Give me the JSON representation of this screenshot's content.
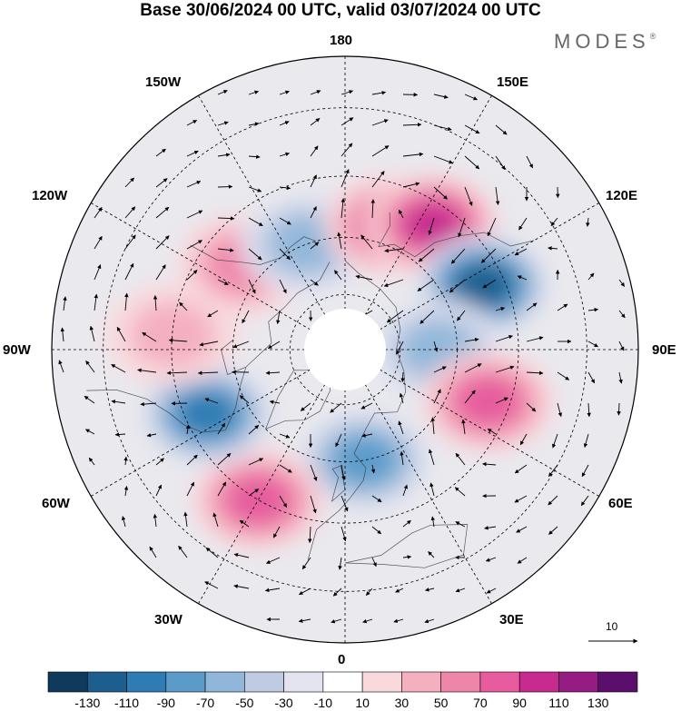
{
  "title": "Base 30/06/2024 00 UTC, valid 03/07/2024 00 UTC",
  "brand": "MODES",
  "brand_mark": "®",
  "longitude_labels": {
    "lon_180": "180",
    "lon_150e": "150E",
    "lon_120e": "120E",
    "lon_90e": "90E",
    "lon_60e": "60E",
    "lon_30e": "30E",
    "lon_0": "0",
    "lon_30w": "30W",
    "lon_60w": "60W",
    "lon_90w": "90W",
    "lon_120w": "120W",
    "lon_150w": "150W"
  },
  "reference_vector": {
    "label": "10"
  },
  "colorbar": {
    "ticks": [
      "-130",
      "-110",
      "-90",
      "-70",
      "-50",
      "-30",
      "-10",
      "10",
      "30",
      "50",
      "70",
      "90",
      "110",
      "130"
    ],
    "colors": [
      "#0f3a5c",
      "#1c5e8e",
      "#2f7bb4",
      "#5a9bca",
      "#90b7da",
      "#bfcbe3",
      "#e3e4f0",
      "#ffffff",
      "#f9d9de",
      "#f4b0c0",
      "#ee86aa",
      "#e65c9e",
      "#c82b90",
      "#951c83",
      "#5b0e6c"
    ]
  },
  "map_data": {
    "projection": "polar-stereographic-north",
    "center_longitude_top": 180,
    "anomalies": [
      {
        "label": "pos",
        "lon": -130,
        "lat": 55,
        "value": 60
      },
      {
        "label": "neg",
        "lon": -160,
        "lat": 60,
        "value": -60
      },
      {
        "label": "pos",
        "lon": 160,
        "lat": 55,
        "value": 80
      },
      {
        "label": "pos",
        "lon": 145,
        "lat": 50,
        "value": 90
      },
      {
        "label": "neg",
        "lon": 115,
        "lat": 50,
        "value": -120
      },
      {
        "label": "neg",
        "lon": 90,
        "lat": 65,
        "value": -50
      },
      {
        "label": "pos",
        "lon": 70,
        "lat": 50,
        "value": 70
      },
      {
        "label": "neg",
        "lon": 10,
        "lat": 60,
        "value": -70
      },
      {
        "label": "pos",
        "lon": -30,
        "lat": 45,
        "value": 70
      },
      {
        "label": "neg",
        "lon": -65,
        "lat": 50,
        "value": -100
      },
      {
        "label": "pos",
        "lon": -95,
        "lat": 45,
        "value": 30
      }
    ]
  }
}
